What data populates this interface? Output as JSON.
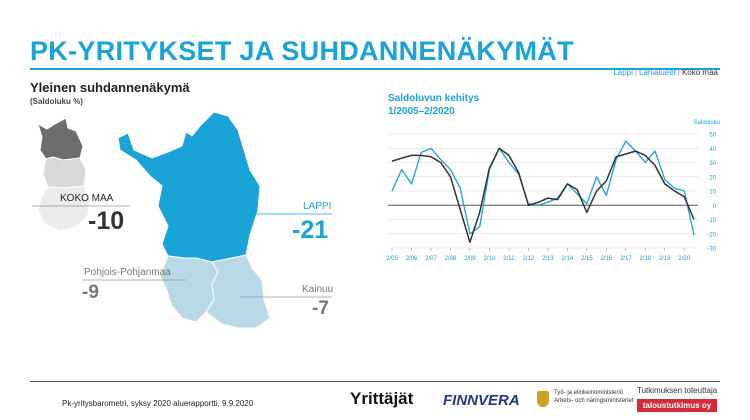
{
  "title": "PK-YRITYKSET JA SUHDANNENÄKYMÄT",
  "region_nav": {
    "items": [
      "Lappi",
      "Lähialueet",
      "Koko maa"
    ],
    "separator": "|"
  },
  "left": {
    "subtitle": "Yleinen suhdannenäkymä",
    "unit_note": "(Saldoluku %)",
    "regions": [
      {
        "name": "KOKO MAA",
        "value": "-10",
        "color": "#333333"
      },
      {
        "name": "LAPPI",
        "value": "-21",
        "color": "#1aa3d6"
      },
      {
        "name": "Pohjois-Pohjanmaa",
        "value": "-9",
        "color": "#777777"
      },
      {
        "name": "Kainuu",
        "value": "-7",
        "color": "#777777"
      }
    ]
  },
  "chart_data": {
    "type": "line",
    "title": "Saldoluvun kehitys",
    "subtitle": "1/2005–2/2020",
    "ylabel": "Saldoluku",
    "ylim": [
      -30,
      50
    ],
    "yticks": [
      50,
      40,
      30,
      20,
      10,
      0,
      -10,
      -20,
      -30
    ],
    "xtick_labels": [
      "2/05",
      "2/06",
      "2/07",
      "2/08",
      "2/09",
      "2/10",
      "2/11",
      "2/12",
      "2/13",
      "2/14",
      "2/15",
      "2/16",
      "2/17",
      "2/18",
      "2/19",
      "2/20"
    ],
    "grid": true,
    "colors": {
      "lappi": "#1aa3d6",
      "koko_maa": "#333333",
      "axis": "#1aa3d6"
    },
    "series": [
      {
        "key": "lappi",
        "values": [
          10,
          25,
          15,
          37,
          40,
          32,
          25,
          12,
          -20,
          -15,
          25,
          40,
          30,
          22,
          1,
          0,
          2,
          5,
          15,
          8,
          1,
          20,
          7,
          32,
          45,
          38,
          30,
          38,
          18,
          12,
          10,
          -21
        ]
      },
      {
        "key": "koko_maa",
        "values": [
          31,
          33,
          35,
          35,
          34,
          30,
          20,
          -3,
          -26,
          -5,
          26,
          40,
          35,
          23,
          0,
          2,
          5,
          4,
          15,
          11,
          -5,
          10,
          17,
          34,
          36,
          38,
          35,
          28,
          15,
          10,
          6,
          -10
        ]
      }
    ]
  },
  "footer": {
    "source": "Pk-yritysbarometri, syksy 2020 aluerapportti, 9.9.2020",
    "logos": {
      "yrittajat": "Yrittäjät",
      "finnvera": "FINNVERA",
      "ministry": "Työ- ja elinkeinoministeriö\nArbets- och näringsministeriet",
      "tutkimus_label": "Tutkimuksen toteuttaja",
      "tutkimus_box": "taloustutkimus oy"
    }
  }
}
